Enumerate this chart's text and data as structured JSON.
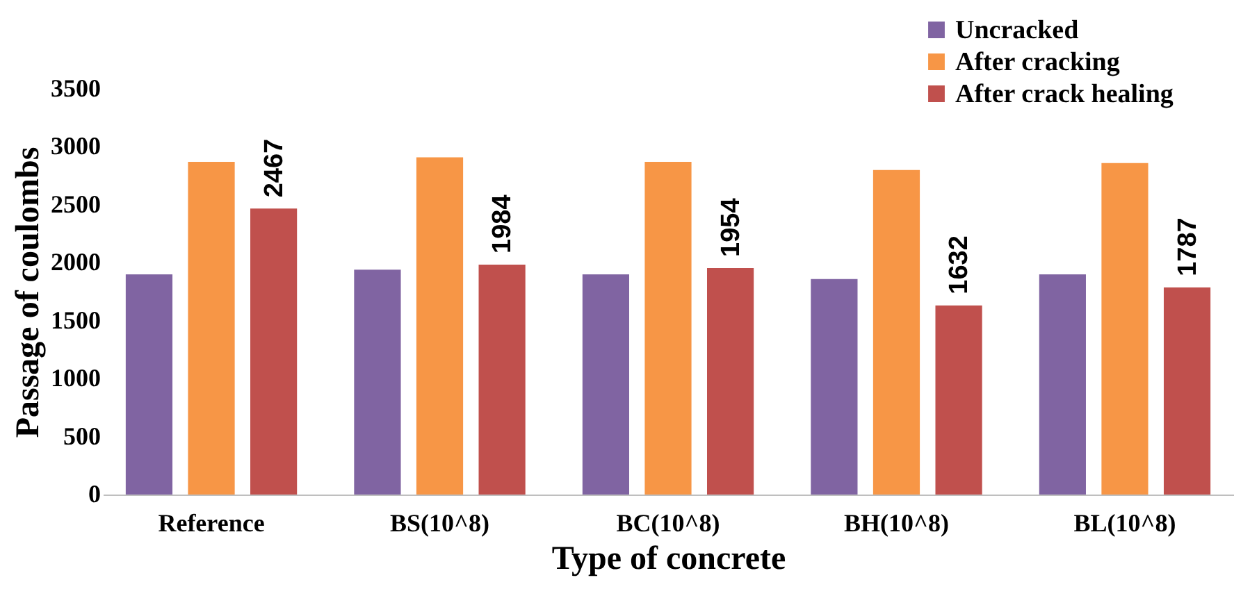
{
  "chart_data": {
    "type": "bar",
    "xlabel": "Type of concrete",
    "ylabel": "Passage of coulombs",
    "categories": [
      "Reference",
      "BS(10^8)",
      "BC(10^8)",
      "BH(10^8)",
      "BL(10^8)"
    ],
    "series": [
      {
        "name": "Uncracked",
        "color": "#8064a2",
        "values": [
          1900,
          1940,
          1900,
          1860,
          1900
        ]
      },
      {
        "name": "After cracking",
        "color": "#f79646",
        "values": [
          2870,
          2910,
          2870,
          2800,
          2860
        ]
      },
      {
        "name": "After crack healing",
        "color": "#c0504d",
        "values": [
          2467,
          1984,
          1954,
          1632,
          1787
        ],
        "value_labels": [
          "2467",
          "1984",
          "1954",
          "1632",
          "1787"
        ]
      }
    ],
    "ylim": [
      0,
      3500
    ],
    "yticks": [
      0,
      500,
      1000,
      1500,
      2000,
      2500,
      3000,
      3500
    ],
    "grid": false,
    "legend": "top right"
  }
}
